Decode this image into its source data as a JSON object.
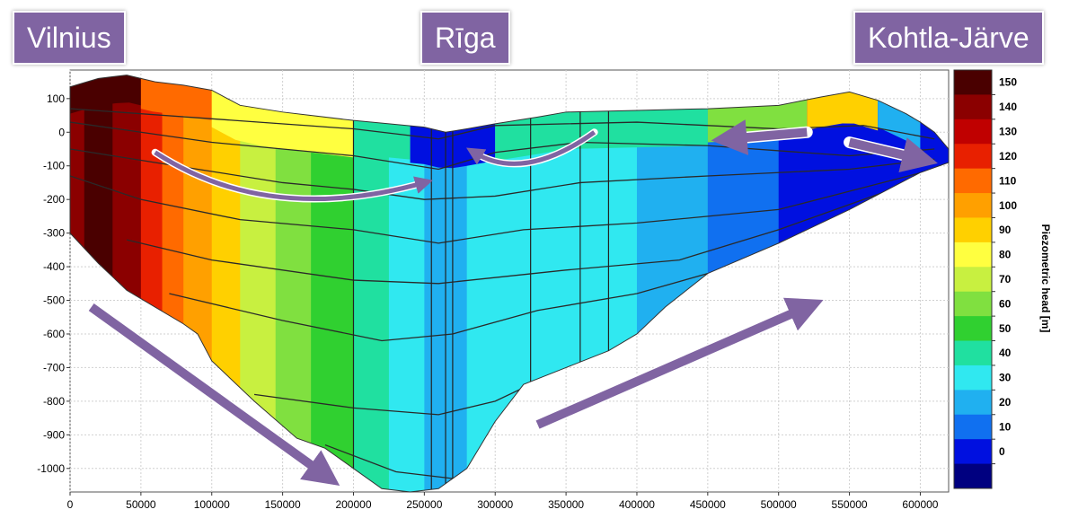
{
  "places": {
    "left": "Vilnius",
    "center": "Rīga",
    "right": "Kohtla-Järve"
  },
  "chart_data": {
    "type": "heatmap",
    "title": "",
    "xlabel": "",
    "ylabel": "",
    "xlim": [
      0,
      620000
    ],
    "ylim": [
      -1070,
      185
    ],
    "grid": true,
    "x_ticks": [
      "0",
      "50000",
      "100000",
      "150000",
      "200000",
      "250000",
      "300000",
      "350000",
      "400000",
      "450000",
      "500000",
      "550000",
      "600000"
    ],
    "x_tick_values": [
      0,
      50000,
      100000,
      150000,
      200000,
      250000,
      300000,
      350000,
      400000,
      450000,
      500000,
      550000,
      600000
    ],
    "y_ticks": [
      "100",
      "0",
      "-100",
      "-200",
      "-300",
      "-400",
      "-500",
      "-600",
      "-700",
      "-800",
      "-900",
      "-1000"
    ],
    "y_tick_values": [
      100,
      0,
      -100,
      -200,
      -300,
      -400,
      -500,
      -600,
      -700,
      -800,
      -900,
      -1000
    ],
    "colorbar": {
      "label": "Piezometric head [m]",
      "ticks": [
        "150",
        "140",
        "130",
        "120",
        "110",
        "100",
        "90",
        "80",
        "70",
        "60",
        "50",
        "40",
        "30",
        "20",
        "10",
        "0"
      ],
      "tick_values": [
        150,
        140,
        130,
        120,
        110,
        100,
        90,
        80,
        70,
        60,
        50,
        40,
        30,
        20,
        10,
        0
      ],
      "levels": [
        {
          "value": 155,
          "color": "#4a0000"
        },
        {
          "value": 145,
          "color": "#8b0000"
        },
        {
          "value": 135,
          "color": "#c00000"
        },
        {
          "value": 125,
          "color": "#e82000"
        },
        {
          "value": 115,
          "color": "#ff6a00"
        },
        {
          "value": 105,
          "color": "#ffa000"
        },
        {
          "value": 95,
          "color": "#ffd000"
        },
        {
          "value": 85,
          "color": "#ffff40"
        },
        {
          "value": 75,
          "color": "#c8f040"
        },
        {
          "value": 65,
          "color": "#80e040"
        },
        {
          "value": 55,
          "color": "#30d030"
        },
        {
          "value": 45,
          "color": "#20e0a0"
        },
        {
          "value": 35,
          "color": "#30e8f0"
        },
        {
          "value": 25,
          "color": "#20b0f0"
        },
        {
          "value": 15,
          "color": "#1070f0"
        },
        {
          "value": 5,
          "color": "#0010e0"
        },
        {
          "value": -5,
          "color": "#000080"
        }
      ]
    },
    "section": {
      "top_surface": [
        [
          0,
          135
        ],
        [
          20000,
          160
        ],
        [
          40000,
          170
        ],
        [
          60000,
          150
        ],
        [
          80000,
          140
        ],
        [
          100000,
          125
        ],
        [
          120000,
          80
        ],
        [
          150000,
          60
        ],
        [
          200000,
          35
        ],
        [
          250000,
          15
        ],
        [
          265000,
          0
        ],
        [
          280000,
          10
        ],
        [
          300000,
          25
        ],
        [
          330000,
          45
        ],
        [
          350000,
          60
        ],
        [
          400000,
          65
        ],
        [
          450000,
          70
        ],
        [
          500000,
          80
        ],
        [
          530000,
          105
        ],
        [
          550000,
          120
        ],
        [
          570000,
          95
        ],
        [
          590000,
          55
        ],
        [
          600000,
          30
        ],
        [
          610000,
          0
        ],
        [
          620000,
          -50
        ]
      ],
      "bottom_surface": [
        [
          0,
          -300
        ],
        [
          20000,
          -390
        ],
        [
          40000,
          -470
        ],
        [
          60000,
          -520
        ],
        [
          80000,
          -570
        ],
        [
          90000,
          -600
        ],
        [
          100000,
          -680
        ],
        [
          130000,
          -800
        ],
        [
          160000,
          -910
        ],
        [
          180000,
          -940
        ],
        [
          200000,
          -1000
        ],
        [
          220000,
          -1060
        ],
        [
          240000,
          -1070
        ],
        [
          260000,
          -1060
        ],
        [
          280000,
          -1000
        ],
        [
          300000,
          -860
        ],
        [
          320000,
          -750
        ],
        [
          350000,
          -700
        ],
        [
          380000,
          -650
        ],
        [
          400000,
          -600
        ],
        [
          420000,
          -520
        ],
        [
          450000,
          -420
        ],
        [
          500000,
          -330
        ],
        [
          550000,
          -230
        ],
        [
          600000,
          -120
        ],
        [
          620000,
          -90
        ]
      ],
      "head_columns": [
        {
          "x": [
            0,
            10000
          ],
          "value": 145
        },
        {
          "x": [
            10000,
            30000
          ],
          "value": 150
        },
        {
          "x": [
            30000,
            50000
          ],
          "value": 140
        },
        {
          "x": [
            50000,
            65000
          ],
          "value": 125
        },
        {
          "x": [
            65000,
            80000
          ],
          "value": 112
        },
        {
          "x": [
            80000,
            100000
          ],
          "value": 100
        },
        {
          "x": [
            100000,
            120000
          ],
          "value": 90
        },
        {
          "x": [
            120000,
            145000
          ],
          "value": 78
        },
        {
          "x": [
            145000,
            170000
          ],
          "value": 68
        },
        {
          "x": [
            170000,
            200000
          ],
          "value": 58
        },
        {
          "x": [
            200000,
            225000
          ],
          "value": 48
        },
        {
          "x": [
            225000,
            250000
          ],
          "value": 35
        },
        {
          "x": [
            250000,
            280000
          ],
          "value": 22
        },
        {
          "x": [
            280000,
            300000
          ],
          "value": 30
        },
        {
          "x": [
            300000,
            350000
          ],
          "value": 36
        },
        {
          "x": [
            350000,
            400000
          ],
          "value": 33
        },
        {
          "x": [
            400000,
            450000
          ],
          "value": 28
        },
        {
          "x": [
            450000,
            500000
          ],
          "value": 15
        },
        {
          "x": [
            500000,
            550000
          ],
          "value": 8
        },
        {
          "x": [
            550000,
            620000
          ],
          "value": 4
        }
      ],
      "top_zone": [
        {
          "x": [
            0,
            50000
          ],
          "depth": 80,
          "value": 152
        },
        {
          "x": [
            50000,
            100000
          ],
          "depth": 90,
          "value": 110
        },
        {
          "x": [
            100000,
            200000
          ],
          "depth": 110,
          "value": 82
        },
        {
          "x": [
            200000,
            240000
          ],
          "depth": 100,
          "value": 45
        },
        {
          "x": [
            240000,
            300000
          ],
          "depth": 110,
          "value": 3
        },
        {
          "x": [
            300000,
            360000
          ],
          "depth": 110,
          "value": 40
        },
        {
          "x": [
            360000,
            450000
          ],
          "depth": 110,
          "value": 48
        },
        {
          "x": [
            450000,
            520000
          ],
          "depth": 100,
          "value": 62
        },
        {
          "x": [
            520000,
            570000
          ],
          "depth": 90,
          "value": 95
        },
        {
          "x": [
            570000,
            600000
          ],
          "depth": 80,
          "value": 20
        },
        {
          "x": [
            600000,
            620000
          ],
          "depth": 90,
          "value": 0
        }
      ],
      "layer_boundaries": [
        [
          [
            0,
            70
          ],
          [
            100000,
            40
          ],
          [
            200000,
            10
          ],
          [
            260000,
            -20
          ],
          [
            300000,
            20
          ],
          [
            400000,
            30
          ],
          [
            500000,
            10
          ],
          [
            560000,
            20
          ],
          [
            610000,
            -20
          ]
        ],
        [
          [
            0,
            30
          ],
          [
            100000,
            -30
          ],
          [
            200000,
            -70
          ],
          [
            260000,
            -110
          ],
          [
            300000,
            -60
          ],
          [
            360000,
            -30
          ],
          [
            450000,
            -40
          ],
          [
            550000,
            -70
          ],
          [
            610000,
            -50
          ]
        ],
        [
          [
            0,
            -50
          ],
          [
            60000,
            -90
          ],
          [
            150000,
            -150
          ],
          [
            200000,
            -170
          ],
          [
            250000,
            -200
          ],
          [
            300000,
            -190
          ],
          [
            360000,
            -150
          ],
          [
            450000,
            -130
          ],
          [
            550000,
            -110
          ],
          [
            610000,
            -80
          ]
        ],
        [
          [
            0,
            -130
          ],
          [
            50000,
            -200
          ],
          [
            120000,
            -260
          ],
          [
            200000,
            -290
          ],
          [
            260000,
            -330
          ],
          [
            320000,
            -290
          ],
          [
            400000,
            -270
          ],
          [
            500000,
            -230
          ],
          [
            610000,
            -110
          ]
        ],
        [
          [
            40000,
            -320
          ],
          [
            100000,
            -380
          ],
          [
            200000,
            -440
          ],
          [
            260000,
            -450
          ],
          [
            350000,
            -410
          ],
          [
            430000,
            -380
          ],
          [
            500000,
            -290
          ],
          [
            600000,
            -140
          ]
        ],
        [
          [
            70000,
            -480
          ],
          [
            150000,
            -560
          ],
          [
            220000,
            -620
          ],
          [
            270000,
            -600
          ],
          [
            330000,
            -530
          ],
          [
            400000,
            -480
          ],
          [
            450000,
            -420
          ]
        ],
        [
          [
            130000,
            -780
          ],
          [
            200000,
            -820
          ],
          [
            260000,
            -840
          ],
          [
            300000,
            -800
          ],
          [
            340000,
            -720
          ]
        ],
        [
          [
            180000,
            -930
          ],
          [
            230000,
            -1010
          ],
          [
            270000,
            -1030
          ],
          [
            290000,
            -1000
          ]
        ]
      ],
      "vertical_lines": [
        200000,
        255000,
        265000,
        270000,
        325000,
        360000,
        380000
      ]
    },
    "flow_arrows": [
      {
        "type": "straight",
        "from": [
          15000,
          -520
        ],
        "to": [
          180000,
          -1020
        ]
      },
      {
        "type": "straight",
        "from": [
          330000,
          -870
        ],
        "to": [
          520000,
          -520
        ]
      },
      {
        "type": "straight",
        "from": [
          520000,
          0
        ],
        "to": [
          465000,
          -20
        ]
      },
      {
        "type": "straight",
        "from": [
          550000,
          -30
        ],
        "to": [
          600000,
          -80
        ]
      },
      {
        "type": "curve",
        "from": [
          60000,
          -60
        ],
        "via": [
          140000,
          -280
        ],
        "to": [
          250000,
          -150
        ]
      },
      {
        "type": "curve",
        "from": [
          370000,
          0
        ],
        "via": [
          320000,
          -150
        ],
        "to": [
          285000,
          -60
        ]
      }
    ]
  }
}
